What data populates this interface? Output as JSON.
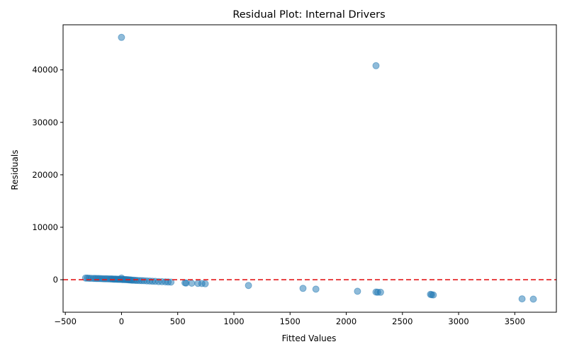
{
  "chart_data": {
    "type": "scatter",
    "title": "Residual Plot: Internal Drivers",
    "xlabel": "Fitted Values",
    "ylabel": "Residuals",
    "xlim": [
      -520,
      3870
    ],
    "ylim": [
      -6200,
      48600
    ],
    "xticks": [
      -500,
      0,
      500,
      1000,
      1500,
      2000,
      2500,
      3000,
      3500
    ],
    "xtick_labels": [
      "−500",
      "0",
      "500",
      "1000",
      "1500",
      "2000",
      "2500",
      "3000",
      "3500"
    ],
    "yticks": [
      0,
      10000,
      20000,
      30000,
      40000
    ],
    "ytick_labels": [
      "0",
      "10000",
      "20000",
      "30000",
      "40000"
    ],
    "reference_line": {
      "y": 0,
      "style": "dashed",
      "color": "#e31a1c"
    },
    "grid": false,
    "point_color": "#1f77b4",
    "point_alpha": 0.5,
    "points": [
      {
        "x": 0,
        "y": 46200
      },
      {
        "x": 2265,
        "y": 40800
      },
      {
        "x": -320,
        "y": 320
      },
      {
        "x": -305,
        "y": 300
      },
      {
        "x": -290,
        "y": 280
      },
      {
        "x": -270,
        "y": 260
      },
      {
        "x": -250,
        "y": 250
      },
      {
        "x": -235,
        "y": 240
      },
      {
        "x": -220,
        "y": 230
      },
      {
        "x": -205,
        "y": 220
      },
      {
        "x": -190,
        "y": 210
      },
      {
        "x": -175,
        "y": 200
      },
      {
        "x": -160,
        "y": 190
      },
      {
        "x": -145,
        "y": 180
      },
      {
        "x": -130,
        "y": 170
      },
      {
        "x": -115,
        "y": 160
      },
      {
        "x": -100,
        "y": 150
      },
      {
        "x": -90,
        "y": 140
      },
      {
        "x": -80,
        "y": 130
      },
      {
        "x": -70,
        "y": 120
      },
      {
        "x": -60,
        "y": 110
      },
      {
        "x": -50,
        "y": 100
      },
      {
        "x": -40,
        "y": 90
      },
      {
        "x": -30,
        "y": 80
      },
      {
        "x": -20,
        "y": 70
      },
      {
        "x": -10,
        "y": 60
      },
      {
        "x": 0,
        "y": 300
      },
      {
        "x": 5,
        "y": 50
      },
      {
        "x": 15,
        "y": 40
      },
      {
        "x": 25,
        "y": 30
      },
      {
        "x": 35,
        "y": 20
      },
      {
        "x": 45,
        "y": 10
      },
      {
        "x": 55,
        "y": 0
      },
      {
        "x": 65,
        "y": -20
      },
      {
        "x": 75,
        "y": -40
      },
      {
        "x": 85,
        "y": -60
      },
      {
        "x": 95,
        "y": -80
      },
      {
        "x": 110,
        "y": -100
      },
      {
        "x": 125,
        "y": -120
      },
      {
        "x": 140,
        "y": -140
      },
      {
        "x": 160,
        "y": -160
      },
      {
        "x": 180,
        "y": -180
      },
      {
        "x": 200,
        "y": -200
      },
      {
        "x": 225,
        "y": -240
      },
      {
        "x": 250,
        "y": -260
      },
      {
        "x": 275,
        "y": -290
      },
      {
        "x": 300,
        "y": -320
      },
      {
        "x": 330,
        "y": -350
      },
      {
        "x": 360,
        "y": -380
      },
      {
        "x": 390,
        "y": -410
      },
      {
        "x": 415,
        "y": -440
      },
      {
        "x": 440,
        "y": -470
      },
      {
        "x": 565,
        "y": -600
      },
      {
        "x": 575,
        "y": -620
      },
      {
        "x": 625,
        "y": -660
      },
      {
        "x": 680,
        "y": -700
      },
      {
        "x": 715,
        "y": -740
      },
      {
        "x": 745,
        "y": -780
      },
      {
        "x": 1130,
        "y": -1100
      },
      {
        "x": 1615,
        "y": -1650
      },
      {
        "x": 1730,
        "y": -1800
      },
      {
        "x": 2100,
        "y": -2200
      },
      {
        "x": 2265,
        "y": -2350
      },
      {
        "x": 2280,
        "y": -2380
      },
      {
        "x": 2305,
        "y": -2400
      },
      {
        "x": 2750,
        "y": -2800
      },
      {
        "x": 2760,
        "y": -2850
      },
      {
        "x": 2775,
        "y": -2900
      },
      {
        "x": 3565,
        "y": -3650
      },
      {
        "x": 3665,
        "y": -3700
      }
    ]
  }
}
